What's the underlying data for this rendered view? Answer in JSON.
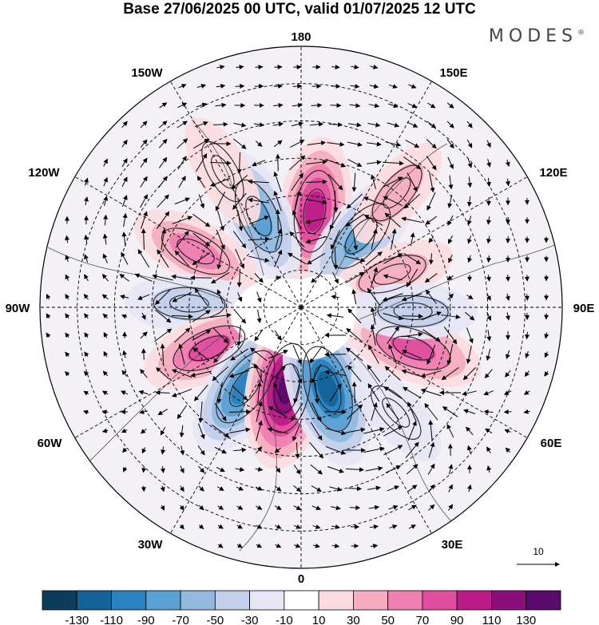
{
  "title": "Base 27/06/2025 00 UTC, valid 01/07/2025 12 UTC",
  "brand": "MODES",
  "brand_mark": "®",
  "longitude_labels": {
    "top": "180",
    "top_left": "150W",
    "top_right": "150E",
    "upper_left": "120W",
    "upper_right": "120E",
    "left": "90W",
    "right": "90E",
    "lower_left": "60W",
    "lower_right": "60E",
    "bottom_left": "30W",
    "bottom_right": "30E",
    "bottom": "0"
  },
  "reference_vector": {
    "value": "10"
  },
  "colorbar": {
    "labels": [
      "-130",
      "-110",
      "-90",
      "-70",
      "-50",
      "-30",
      "-10",
      "10",
      "30",
      "50",
      "70",
      "90",
      "110",
      "130"
    ],
    "colors": [
      "#0e3d5c",
      "#13639a",
      "#2a82be",
      "#5ba0d2",
      "#93b9df",
      "#c3cfea",
      "#e6e6f4",
      "#ffffff",
      "#fadce0",
      "#f4aebf",
      "#ee7fb1",
      "#e04d9f",
      "#bd1b8a",
      "#8a0f7a",
      "#5a0a6a"
    ]
  },
  "anomalies": [
    {
      "lon": 172,
      "colat": 26,
      "value": 95
    },
    {
      "lon": 140,
      "colat": 25,
      "value": -80
    },
    {
      "lon": -155,
      "colat": 27,
      "value": -75
    },
    {
      "lon": 110,
      "colat": 26,
      "value": 40
    },
    {
      "lon": -118,
      "colat": 32,
      "value": 60
    },
    {
      "lon": -92,
      "colat": 30,
      "value": -45
    },
    {
      "lon": -66,
      "colat": 27,
      "value": 70
    },
    {
      "lon": -35,
      "colat": 26,
      "value": -100
    },
    {
      "lon": -10,
      "colat": 22,
      "value": 130
    },
    {
      "lon": 18,
      "colat": 23,
      "value": -120
    },
    {
      "lon": 70,
      "colat": 32,
      "value": 75
    },
    {
      "lon": 88,
      "colat": 30,
      "value": -40
    },
    {
      "lon": 140,
      "colat": 40,
      "value": 30
    },
    {
      "lon": -150,
      "colat": 42,
      "value": 25
    },
    {
      "lon": 42,
      "colat": 38,
      "value": -25
    }
  ]
}
